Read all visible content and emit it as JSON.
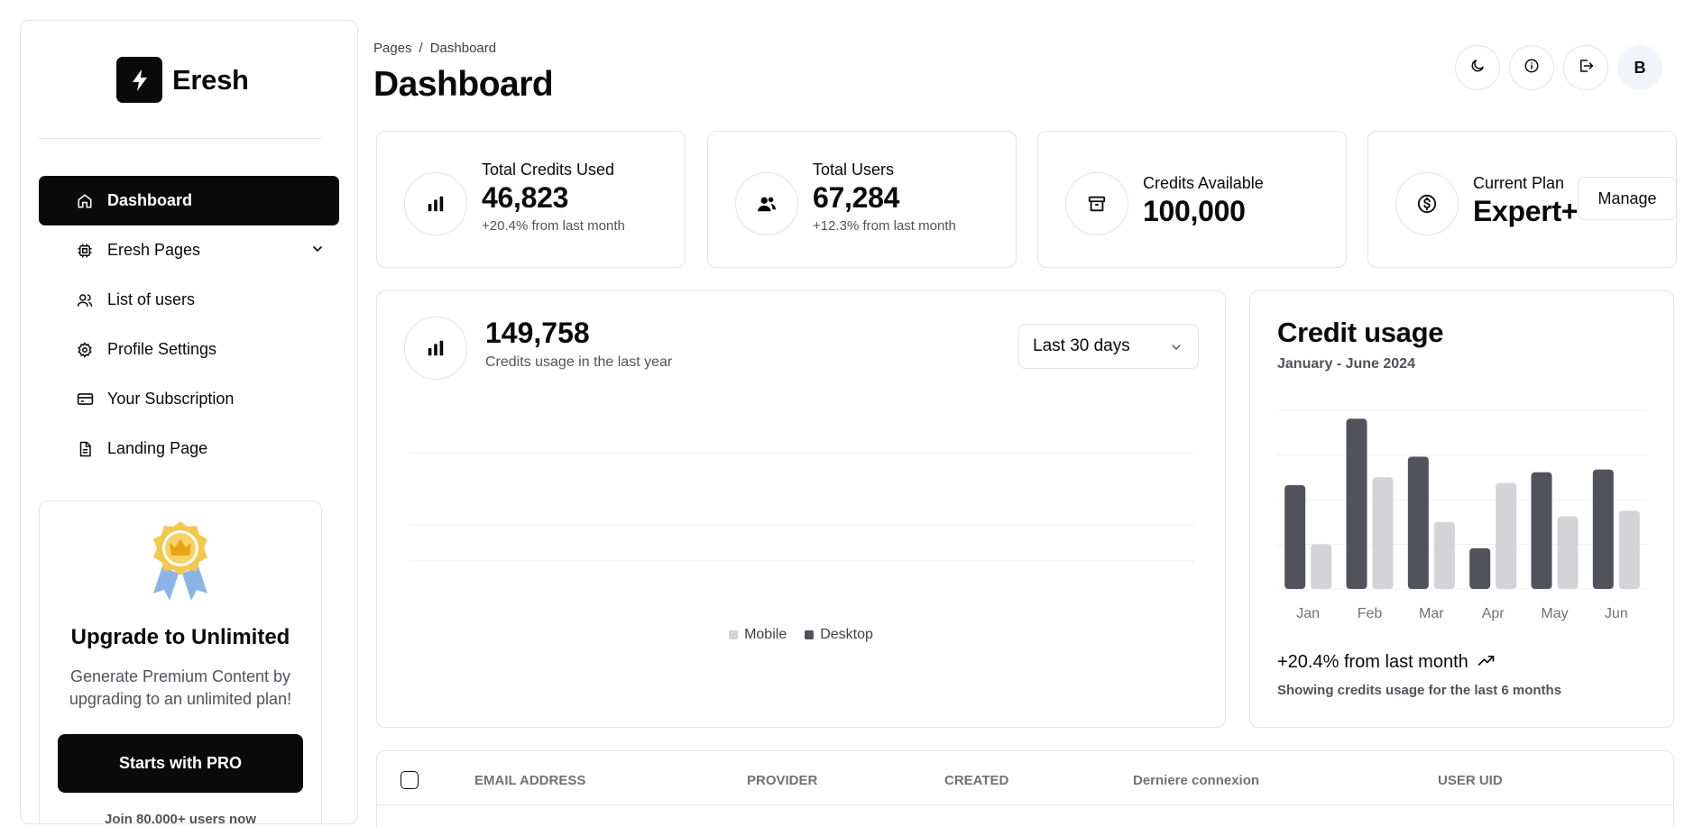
{
  "brand": {
    "name": "Eresh"
  },
  "sidebar": {
    "items": [
      {
        "label": "Dashboard",
        "icon": "home-icon",
        "active": true
      },
      {
        "label": "Eresh Pages",
        "icon": "chip-icon",
        "expandable": true
      },
      {
        "label": "List of users",
        "icon": "users-icon"
      },
      {
        "label": "Profile Settings",
        "icon": "gear-icon"
      },
      {
        "label": "Your Subscription",
        "icon": "card-icon"
      },
      {
        "label": "Landing Page",
        "icon": "file-icon"
      }
    ],
    "upgrade": {
      "title": "Upgrade to Unlimited",
      "text": "Generate Premium Content by upgrading to an unlimited plan!",
      "button": "Starts with PRO",
      "footer": "Join 80,000+ users now"
    }
  },
  "header": {
    "breadcrumb": [
      "Pages",
      "/",
      "Dashboard"
    ],
    "title": "Dashboard",
    "avatar": "B"
  },
  "stats": [
    {
      "label": "Total Credits Used",
      "value": "46,823",
      "sub": "+20.4% from last month",
      "icon": "bar-chart-icon"
    },
    {
      "label": "Total Users",
      "value": "67,284",
      "sub": "+12.3% from last month",
      "icon": "users-icon"
    },
    {
      "label": "Credits Available",
      "value": "100,000",
      "icon": "archive-icon"
    },
    {
      "label": "Current Plan",
      "value": "Expert+",
      "button": "Manage",
      "icon": "dollar-icon"
    }
  ],
  "usage": {
    "value": "149,758",
    "sub": "Credits usage in the last year",
    "range": "Last 30 days",
    "legend": [
      "Mobile",
      "Desktop"
    ]
  },
  "credit_usage": {
    "title": "Credit usage",
    "subtitle": "January - June 2024",
    "trend": "+20.4% from last month",
    "footer": "Showing credits usage for the last 6 months"
  },
  "chart_data": {
    "type": "bar",
    "categories": [
      "Jan",
      "Feb",
      "Mar",
      "Apr",
      "May",
      "Jun"
    ],
    "series": [
      {
        "name": "Desktop",
        "values": [
          186,
          305,
          237,
          73,
          209,
          214
        ],
        "color": "#52525b"
      },
      {
        "name": "Mobile",
        "values": [
          80,
          200,
          120,
          190,
          130,
          140
        ],
        "color": "#d4d4d8"
      }
    ],
    "ylim": [
      0,
      320
    ],
    "grid": true
  },
  "table": {
    "columns": [
      "EMAIL ADDRESS",
      "PROVIDER",
      "CREATED",
      "Derniere connexion",
      "USER UID"
    ]
  }
}
